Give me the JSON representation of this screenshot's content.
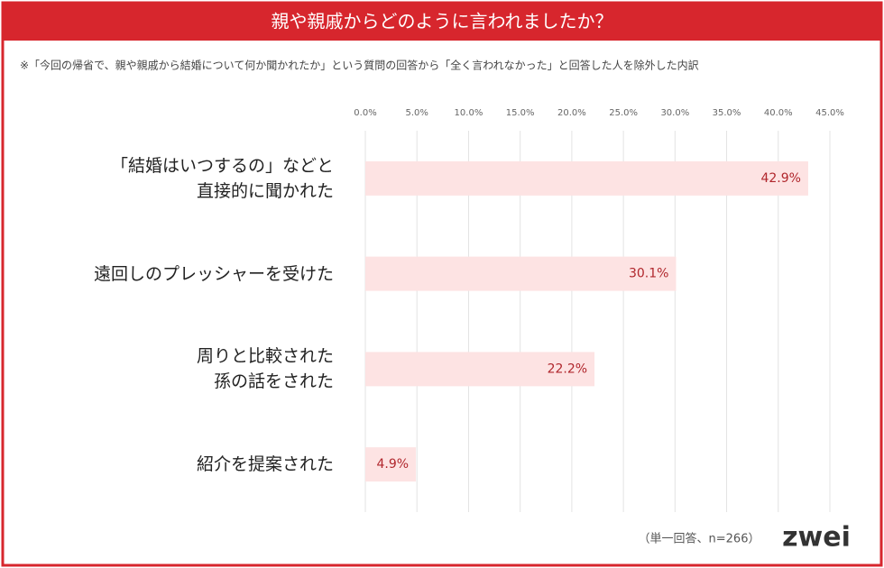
{
  "chart_data": {
    "type": "bar",
    "orientation": "horizontal",
    "title": "親や親戚からどのように言われましたか？",
    "subtitle": "※「今回の帰省で、親や親戚から結婚について何か聞かれたか」という質問の回答から「全く言われなかった」と回答した人を除外した内訳",
    "categories": [
      "「結婚はいつするの」などと\n直接的に聞かれた",
      "遠回しのプレッシャーを受けた",
      "周りと比較された\n孫の話をされた",
      "紹介を提案された"
    ],
    "values": [
      42.9,
      30.1,
      22.2,
      4.9
    ],
    "value_labels": [
      "42.9%",
      "30.1%",
      "22.2%",
      "4.9%"
    ],
    "color": "#fde3e3",
    "label_color": "#b0262c",
    "xlim": [
      0,
      45
    ],
    "xticks": [
      {
        "value": 0,
        "label": "0.0%"
      },
      {
        "value": 5,
        "label": "5.0%"
      },
      {
        "value": 10,
        "label": "10.0%"
      },
      {
        "value": 15,
        "label": "15.0%"
      },
      {
        "value": 20,
        "label": "20.0%"
      },
      {
        "value": 25,
        "label": "25.0%"
      },
      {
        "value": 30,
        "label": "30.0%"
      },
      {
        "value": 35,
        "label": "35.0%"
      },
      {
        "value": 40,
        "label": "40.0%"
      },
      {
        "value": 45,
        "label": "45.0%"
      }
    ],
    "grid": true,
    "note": "（単一回答、n=266）",
    "logo": "zwei"
  }
}
